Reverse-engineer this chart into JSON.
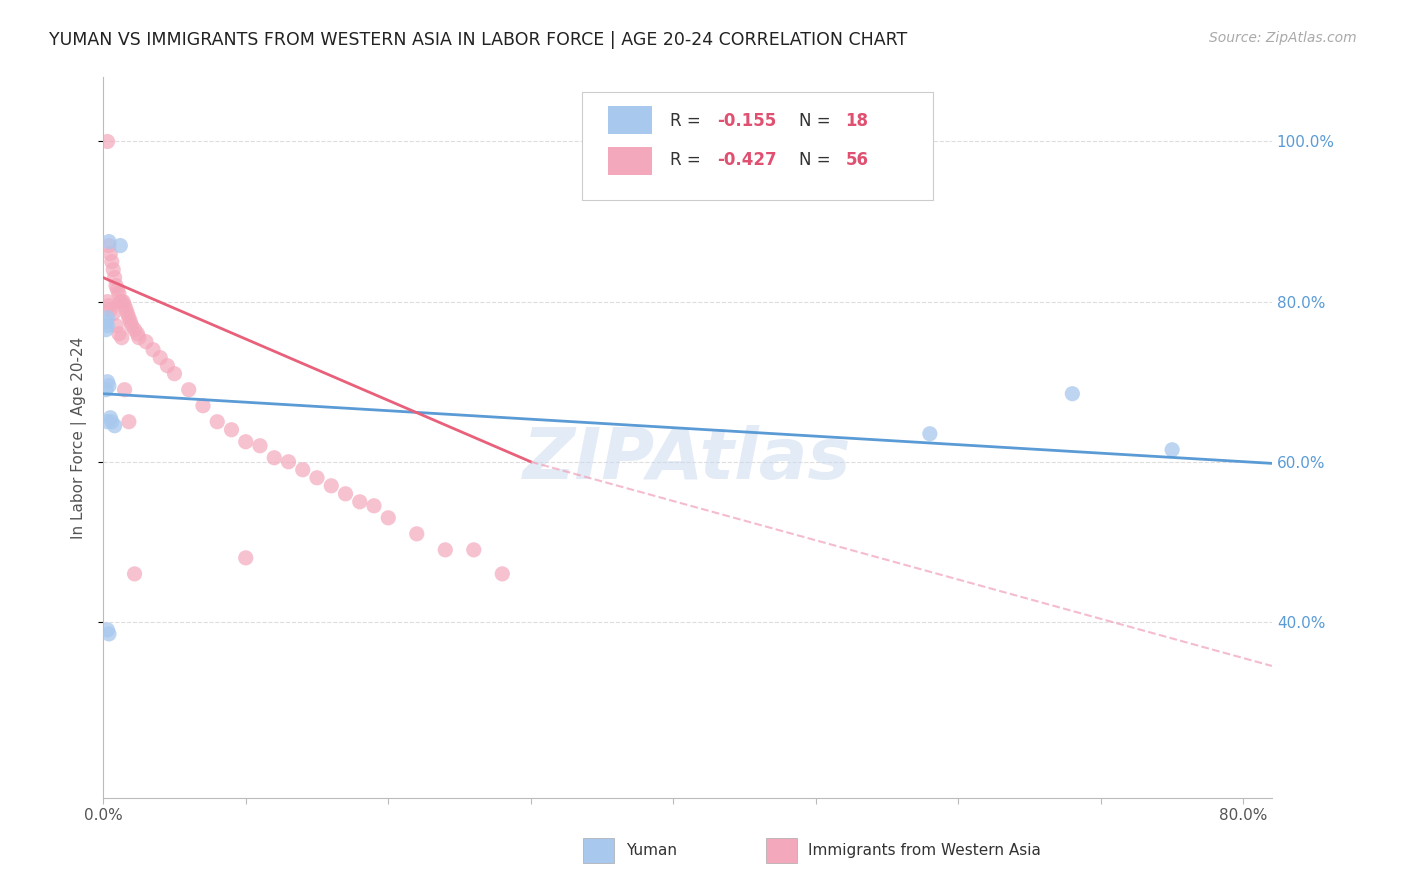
{
  "title": "YUMAN VS IMMIGRANTS FROM WESTERN ASIA IN LABOR FORCE | AGE 20-24 CORRELATION CHART",
  "source": "Source: ZipAtlas.com",
  "ylabel": "In Labor Force | Age 20-24",
  "xlim": [
    0.0,
    0.82
  ],
  "ylim": [
    0.18,
    1.08
  ],
  "blue_R": -0.155,
  "blue_N": 18,
  "pink_R": -0.427,
  "pink_N": 56,
  "blue_color": "#A8C8EE",
  "pink_color": "#F4A8BC",
  "blue_line_color": "#5B9BD5",
  "pink_line_color": "#E8607A",
  "pink_dash_color": "#F0A0B8",
  "watermark_color": "#C8D8EE",
  "blue_scatter_x": [
    0.004,
    0.012,
    0.003,
    0.002,
    0.003,
    0.002,
    0.003,
    0.004,
    0.002,
    0.003,
    0.005,
    0.006,
    0.008,
    0.003,
    0.004,
    0.58,
    0.68,
    0.75
  ],
  "blue_scatter_y": [
    0.875,
    0.87,
    0.78,
    0.775,
    0.77,
    0.765,
    0.7,
    0.695,
    0.69,
    0.65,
    0.655,
    0.65,
    0.645,
    0.39,
    0.385,
    0.635,
    0.685,
    0.615
  ],
  "pink_scatter_x": [
    0.003,
    0.004,
    0.005,
    0.006,
    0.007,
    0.008,
    0.009,
    0.01,
    0.011,
    0.012,
    0.013,
    0.014,
    0.015,
    0.016,
    0.017,
    0.018,
    0.019,
    0.02,
    0.022,
    0.024,
    0.025,
    0.03,
    0.035,
    0.04,
    0.045,
    0.05,
    0.06,
    0.07,
    0.08,
    0.09,
    0.1,
    0.11,
    0.12,
    0.13,
    0.14,
    0.15,
    0.16,
    0.17,
    0.18,
    0.19,
    0.2,
    0.22,
    0.24,
    0.26,
    0.28,
    0.003,
    0.004,
    0.005,
    0.007,
    0.009,
    0.011,
    0.013,
    0.015,
    0.018,
    0.022,
    0.1
  ],
  "pink_scatter_y": [
    1.0,
    0.87,
    0.86,
    0.85,
    0.84,
    0.83,
    0.82,
    0.815,
    0.81,
    0.8,
    0.8,
    0.8,
    0.795,
    0.79,
    0.785,
    0.78,
    0.775,
    0.77,
    0.765,
    0.76,
    0.755,
    0.75,
    0.74,
    0.73,
    0.72,
    0.71,
    0.69,
    0.67,
    0.65,
    0.64,
    0.625,
    0.62,
    0.605,
    0.6,
    0.59,
    0.58,
    0.57,
    0.56,
    0.55,
    0.545,
    0.53,
    0.51,
    0.49,
    0.49,
    0.46,
    0.8,
    0.795,
    0.79,
    0.785,
    0.77,
    0.76,
    0.755,
    0.69,
    0.65,
    0.46,
    0.48
  ],
  "background_color": "#FFFFFF",
  "grid_color": "#DDDDDD",
  "ytick_vals": [
    0.4,
    0.6,
    0.8,
    1.0
  ],
  "ytick_labels": [
    "40.0%",
    "60.0%",
    "80.0%",
    "100.0%"
  ],
  "blue_trend": [
    0.0,
    0.685,
    0.82,
    0.598
  ],
  "pink_solid_trend": [
    0.0,
    0.83,
    0.3,
    0.6
  ],
  "pink_dash_trend": [
    0.3,
    0.6,
    0.82,
    0.345
  ]
}
